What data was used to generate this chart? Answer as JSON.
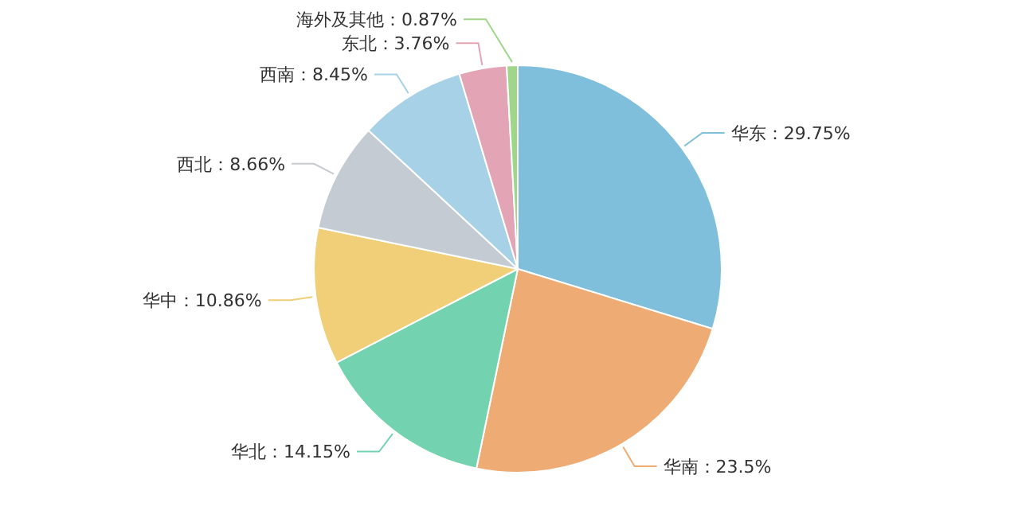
{
  "chart_data": {
    "type": "pie",
    "categories": [
      "华东",
      "华南",
      "华北",
      "华中",
      "西北",
      "西南",
      "东北",
      "海外及其他"
    ],
    "values": [
      29.75,
      23.5,
      14.15,
      10.86,
      8.66,
      8.45,
      3.76,
      0.87
    ],
    "value_labels": [
      "：29.75%",
      "：23.5%",
      "：14.15%",
      "：10.86%",
      "：8.66%",
      "：8.45%",
      "：3.76%",
      "：0.87%"
    ],
    "colors": [
      "#7fbfdc",
      "#eeac74",
      "#73d3b1",
      "#f0cf78",
      "#c5cbd3",
      "#a6d1e6",
      "#e3a4b5",
      "#9fd68a"
    ],
    "legend": false
  }
}
